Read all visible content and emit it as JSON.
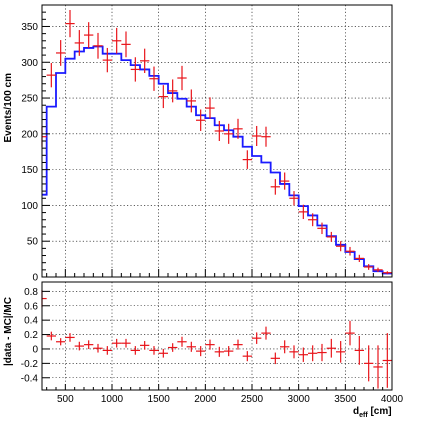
{
  "chart_data": [
    {
      "type": "histogram",
      "panel": "top",
      "ylabel": "Events/100 cm",
      "xlabel": "",
      "xlim": [
        250,
        4000
      ],
      "ylim": [
        0,
        380
      ],
      "grid": true,
      "yticks": [
        0,
        50,
        100,
        150,
        200,
        250,
        300,
        350
      ],
      "ytick_labels": [
        "0",
        "50",
        "100",
        "150",
        "200",
        "250",
        "300",
        "350"
      ],
      "series": [
        {
          "style": "data points with error bars",
          "color": "#e8141a",
          "x": [
            250,
            350,
            450,
            550,
            650,
            750,
            850,
            950,
            1050,
            1150,
            1250,
            1350,
            1450,
            1550,
            1650,
            1750,
            1850,
            1950,
            2050,
            2150,
            2250,
            2350,
            2450,
            2550,
            2650,
            2750,
            2850,
            2950,
            3050,
            3150,
            3250,
            3350,
            3450,
            3550,
            3650,
            3750,
            3850,
            3950
          ],
          "values": [
            196,
            282,
            313,
            354,
            327,
            338,
            323,
            303,
            330,
            325,
            290,
            302,
            277,
            252,
            260,
            278,
            246,
            219,
            236,
            204,
            200,
            207,
            164,
            197,
            196,
            126,
            134,
            110,
            91,
            80,
            68,
            56,
            43,
            36,
            26,
            14,
            10,
            6
          ],
          "errors": [
            14,
            17,
            18,
            19,
            18,
            18,
            18,
            17,
            18,
            18,
            17,
            17,
            17,
            16,
            16,
            17,
            16,
            15,
            15,
            14,
            14,
            14,
            13,
            14,
            14,
            11,
            12,
            10,
            10,
            9,
            8,
            7,
            7,
            6,
            5,
            4,
            3,
            2
          ]
        },
        {
          "style": "step histogram",
          "color": "#1a1aff",
          "x": [
            250,
            350,
            450,
            550,
            650,
            750,
            850,
            950,
            1050,
            1150,
            1250,
            1350,
            1450,
            1550,
            1650,
            1750,
            1850,
            1950,
            2050,
            2150,
            2250,
            2350,
            2450,
            2550,
            2650,
            2750,
            2850,
            2950,
            3050,
            3150,
            3250,
            3350,
            3450,
            3550,
            3650,
            3750,
            3850,
            3950
          ],
          "values": [
            115,
            238,
            285,
            305,
            315,
            320,
            322,
            312,
            312,
            303,
            296,
            290,
            281,
            270,
            257,
            249,
            238,
            226,
            222,
            212,
            205,
            196,
            182,
            169,
            160,
            146,
            130,
            114,
            99,
            86,
            72,
            57,
            45,
            35,
            25,
            15,
            8,
            5
          ]
        }
      ]
    },
    {
      "type": "scatter",
      "panel": "bottom",
      "ylabel": "|data - MC|/MC",
      "xlabel": "d",
      "xlabel_sub": "eff",
      "xlabel_unit": " [cm]",
      "xlim": [
        250,
        4000
      ],
      "ylim": [
        -0.57,
        0.93
      ],
      "grid": true,
      "xticks": [
        500,
        1000,
        1500,
        2000,
        2500,
        3000,
        3500,
        4000
      ],
      "xtick_labels": [
        "500",
        "1000",
        "1500",
        "2000",
        "2500",
        "3000",
        "3500",
        "4000"
      ],
      "yticks": [
        -0.4,
        -0.2,
        0,
        0.2,
        0.4,
        0.6,
        0.8
      ],
      "ytick_labels": [
        "-0.4",
        "-0.2",
        "0",
        "0.2",
        "0.4",
        "0.6",
        "0.8"
      ],
      "series": [
        {
          "style": "data points with error bars",
          "color": "#e8141a",
          "x": [
            250,
            350,
            450,
            550,
            650,
            750,
            850,
            950,
            1050,
            1150,
            1250,
            1350,
            1450,
            1550,
            1650,
            1750,
            1850,
            1950,
            2050,
            2150,
            2250,
            2350,
            2450,
            2550,
            2650,
            2750,
            2850,
            2950,
            3050,
            3150,
            3250,
            3350,
            3450,
            3550,
            3650,
            3750,
            3850,
            3950
          ],
          "values": [
            0.7,
            0.18,
            0.1,
            0.16,
            0.04,
            0.06,
            0.01,
            -0.02,
            0.08,
            0.08,
            -0.02,
            0.05,
            -0.02,
            -0.06,
            0.02,
            0.1,
            0.03,
            -0.03,
            0.06,
            -0.04,
            -0.03,
            0.06,
            -0.1,
            0.15,
            0.22,
            -0.13,
            0.03,
            -0.04,
            -0.08,
            -0.06,
            -0.05,
            0.01,
            -0.04,
            0.22,
            -0.02,
            -0.2,
            -0.25,
            -0.16
          ],
          "errors": [
            0.12,
            0.06,
            0.05,
            0.06,
            0.06,
            0.06,
            0.06,
            0.06,
            0.06,
            0.06,
            0.06,
            0.06,
            0.06,
            0.06,
            0.06,
            0.07,
            0.07,
            0.07,
            0.07,
            0.07,
            0.07,
            0.07,
            0.07,
            0.08,
            0.09,
            0.08,
            0.09,
            0.09,
            0.1,
            0.11,
            0.12,
            0.13,
            0.15,
            0.17,
            0.2,
            0.25,
            0.3,
            0.38
          ]
        }
      ]
    }
  ]
}
